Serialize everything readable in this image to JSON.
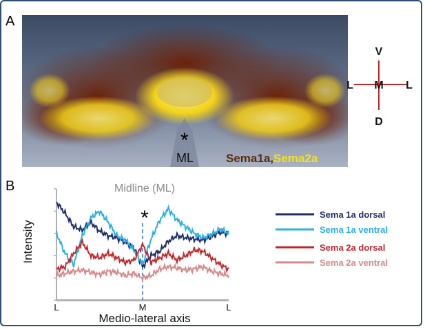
{
  "figure": {
    "panel_a_label": "A",
    "panel_b_label": "B",
    "asterisk": "*",
    "ml_label": "ML",
    "stain_label_1": "Sema1a",
    "stain_separator": ",",
    "stain_label_2": "Sema2a",
    "compass": {
      "top": "V",
      "bottom": "D",
      "left": "L",
      "center": "M",
      "right": "L"
    },
    "colors": {
      "sema1a_stain": "#5a2a0a",
      "sema2a_stain": "#f2e21a",
      "compass_line": "#c0282b",
      "frame": "#2f4b7c"
    }
  },
  "chart_data": {
    "type": "line",
    "title": "",
    "annotation": "Midline (ML)",
    "annotation_marker": "*",
    "xlabel": "Medio-lateral axis",
    "ylabel": "Intensity",
    "x_ticks": [
      "L",
      "M",
      "L"
    ],
    "x": [
      0,
      5,
      10,
      15,
      20,
      25,
      30,
      35,
      40,
      45,
      50,
      55,
      60,
      65,
      70,
      75,
      80,
      85,
      90,
      95,
      100
    ],
    "series": [
      {
        "name": "Sema 1a dorsal",
        "color": "#1f2d6b",
        "values": [
          88,
          78,
          66,
          63,
          70,
          62,
          58,
          56,
          52,
          47,
          30,
          40,
          44,
          53,
          58,
          56,
          55,
          54,
          57,
          61,
          60
        ]
      },
      {
        "name": "Sema 1a ventral",
        "color": "#2ab0e6",
        "values": [
          60,
          42,
          32,
          58,
          74,
          80,
          70,
          58,
          54,
          45,
          32,
          55,
          72,
          82,
          72,
          66,
          60,
          56,
          59,
          64,
          60
        ]
      },
      {
        "name": "Sema 2a dorsal",
        "color": "#c0282b",
        "values": [
          28,
          30,
          42,
          52,
          40,
          38,
          42,
          38,
          34,
          36,
          50,
          34,
          38,
          42,
          36,
          40,
          45,
          44,
          38,
          32,
          28
        ]
      },
      {
        "name": "Sema 2a ventral",
        "color": "#d48a8a",
        "values": [
          22,
          24,
          26,
          27,
          25,
          23,
          26,
          25,
          22,
          24,
          20,
          22,
          28,
          30,
          29,
          27,
          28,
          30,
          26,
          24,
          22
        ]
      }
    ]
  }
}
